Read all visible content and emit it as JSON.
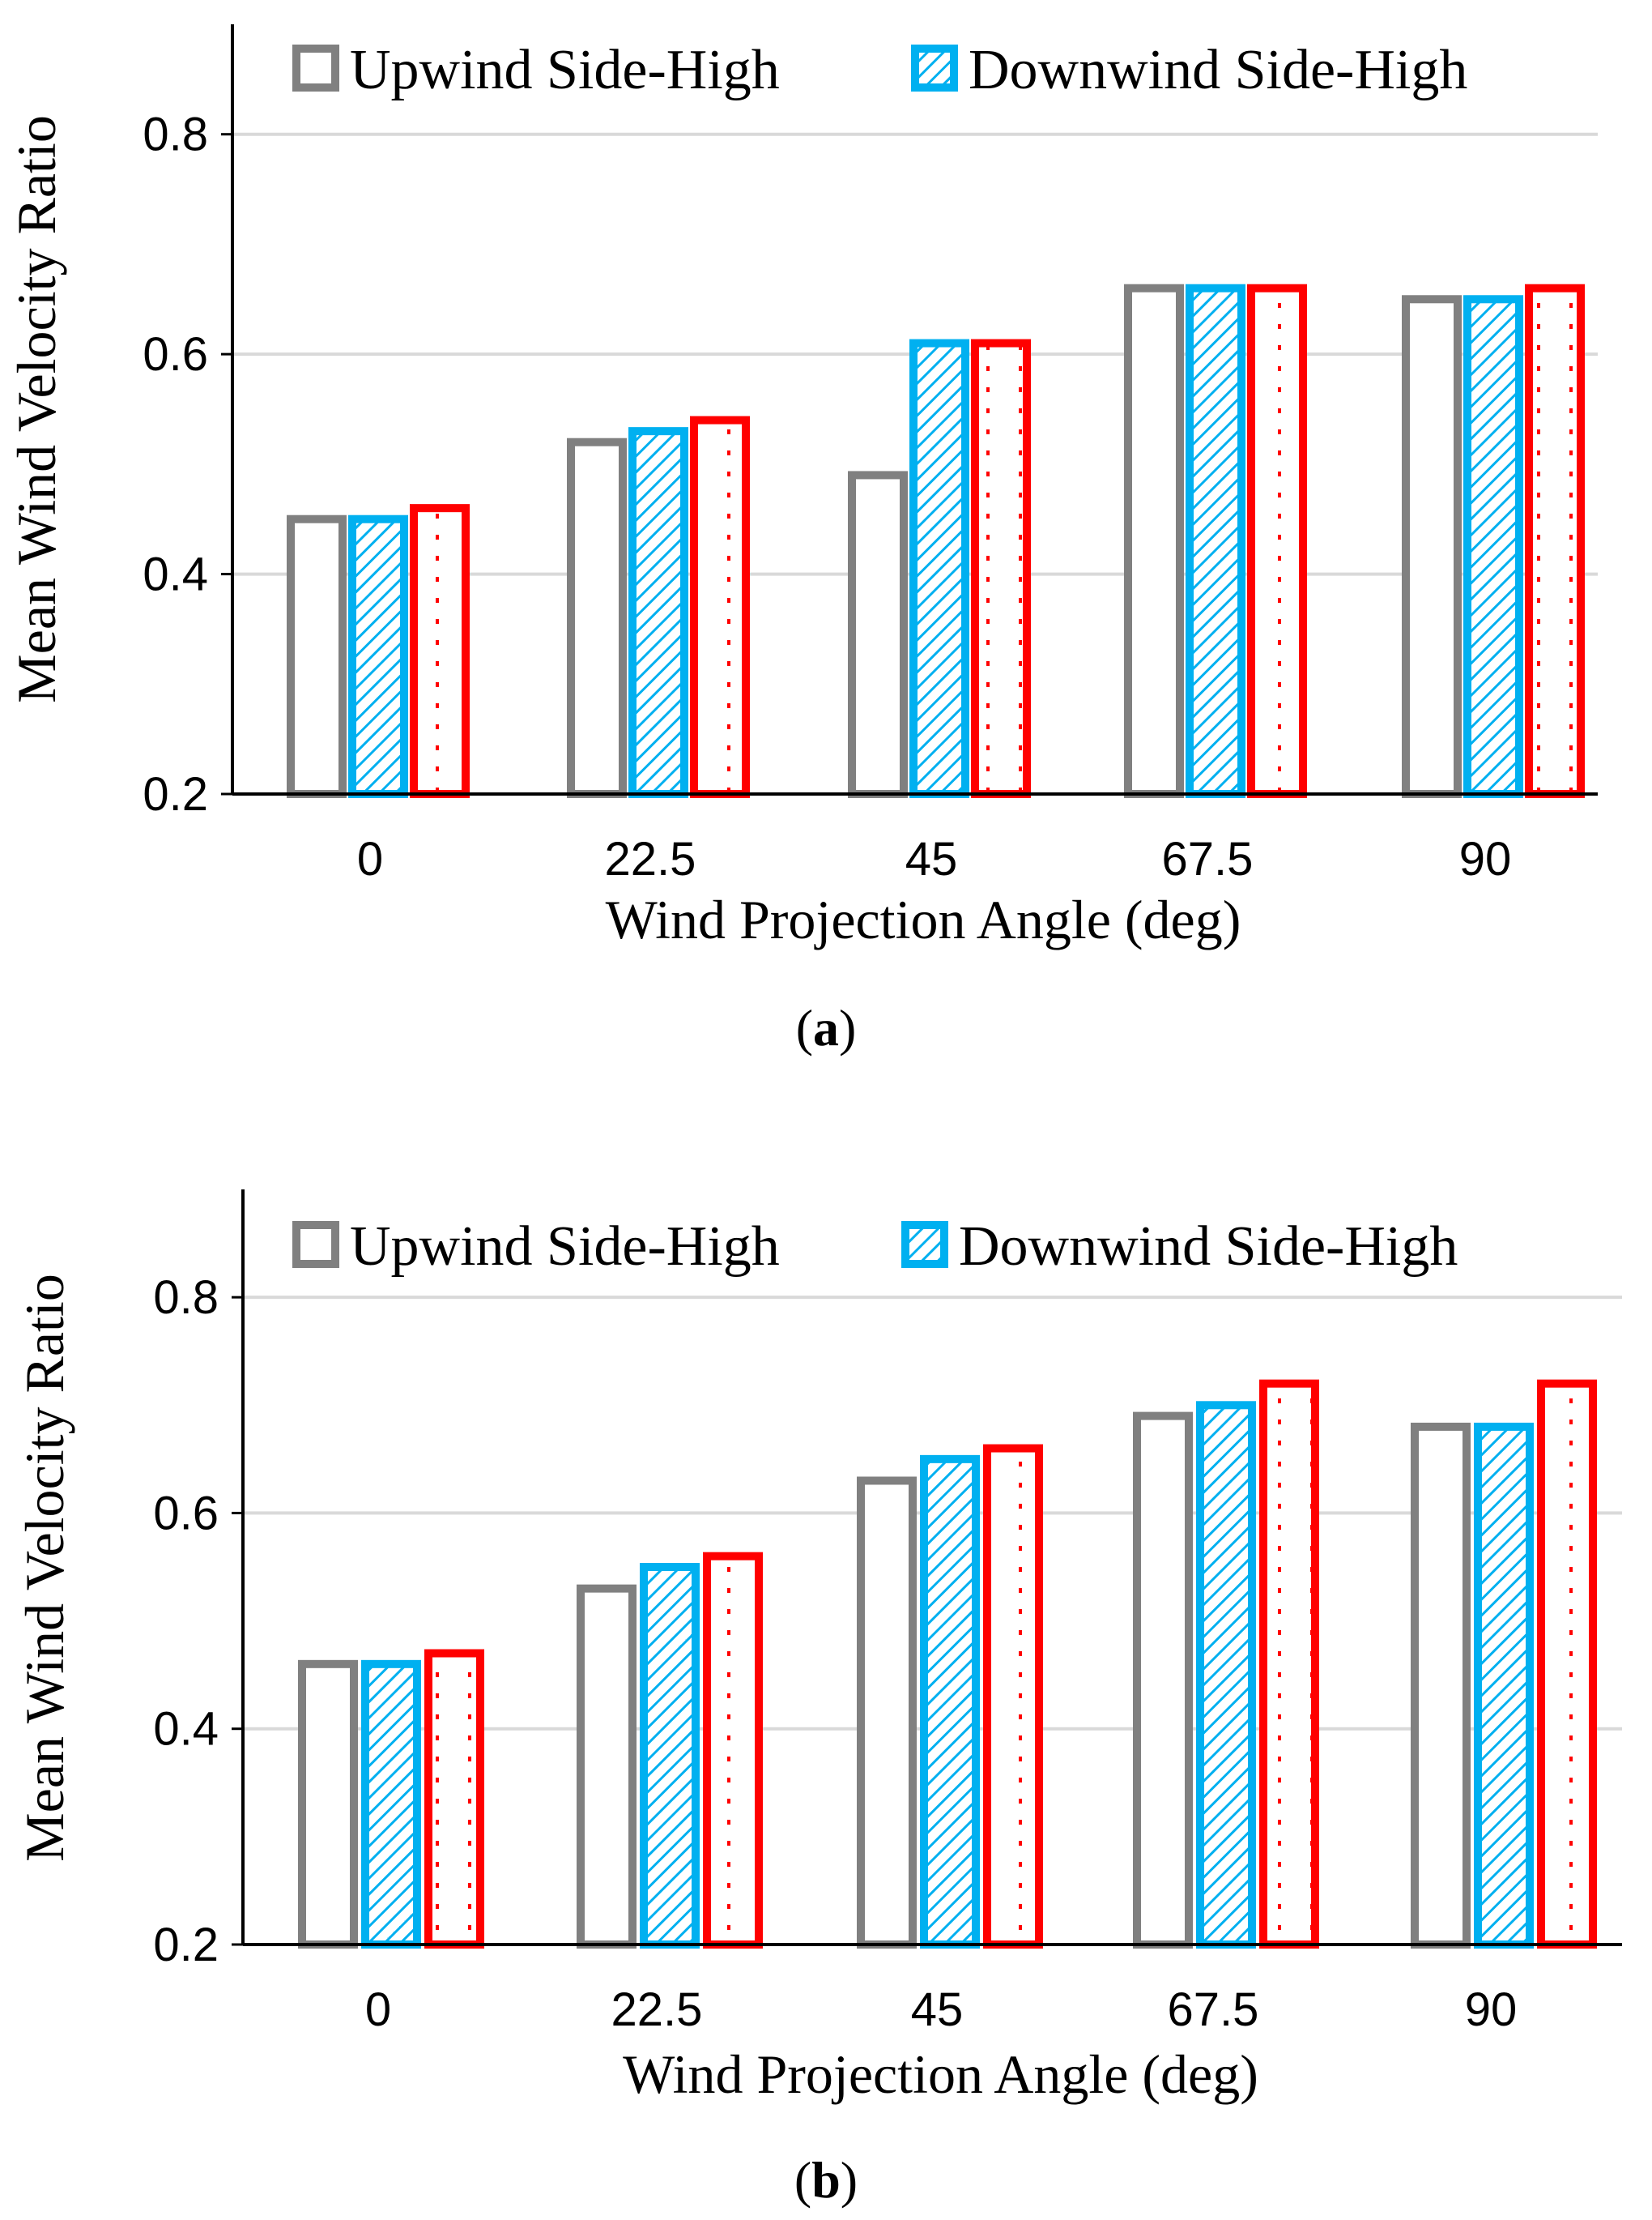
{
  "chart_data": [
    {
      "type": "bar",
      "panel_label": {
        "open": "(",
        "letter": "a",
        "close": ")"
      },
      "categories": [
        "0",
        "22.5",
        "45",
        "67.5",
        "90"
      ],
      "series": [
        {
          "name": "Upwind Side-High",
          "values": [
            0.45,
            0.52,
            0.49,
            0.66,
            0.65
          ]
        },
        {
          "name": "Downwind Side-High",
          "values": [
            0.45,
            0.53,
            0.61,
            0.66,
            0.65
          ]
        },
        {
          "name": "",
          "values": [
            0.46,
            0.54,
            0.61,
            0.66,
            0.66
          ]
        }
      ],
      "xlabel": "Wind Projection Angle (deg)",
      "ylabel": "Mean Wind Velocity Ratio",
      "ylim": [
        0.2,
        0.9
      ],
      "yticks": [
        "0.2",
        "0.4",
        "0.6",
        "0.8"
      ],
      "ytick_values": [
        0.2,
        0.4,
        0.6,
        0.8
      ],
      "grid": true,
      "legend_position": "top"
    },
    {
      "type": "bar",
      "panel_label": {
        "open": "(",
        "letter": "b",
        "close": ")"
      },
      "categories": [
        "0",
        "22.5",
        "45",
        "67.5",
        "90"
      ],
      "series": [
        {
          "name": "Upwind Side-High",
          "values": [
            0.46,
            0.53,
            0.63,
            0.69,
            0.68
          ]
        },
        {
          "name": "Downwind Side-High",
          "values": [
            0.46,
            0.55,
            0.65,
            0.7,
            0.68
          ]
        },
        {
          "name": "",
          "values": [
            0.47,
            0.56,
            0.66,
            0.72,
            0.72
          ]
        }
      ],
      "xlabel": "Wind Projection Angle (deg)",
      "ylabel": "Mean Wind Velocity Ratio",
      "ylim": [
        0.2,
        0.9
      ],
      "yticks": [
        "0.2",
        "0.4",
        "0.6",
        "0.8"
      ],
      "ytick_values": [
        0.2,
        0.4,
        0.6,
        0.8
      ],
      "grid": true,
      "legend_position": "top"
    }
  ],
  "colors": {
    "series": [
      "#808080",
      "#00b0f0",
      "#ff0000"
    ],
    "grid": "#d9d9d9",
    "axis": "#000000"
  }
}
